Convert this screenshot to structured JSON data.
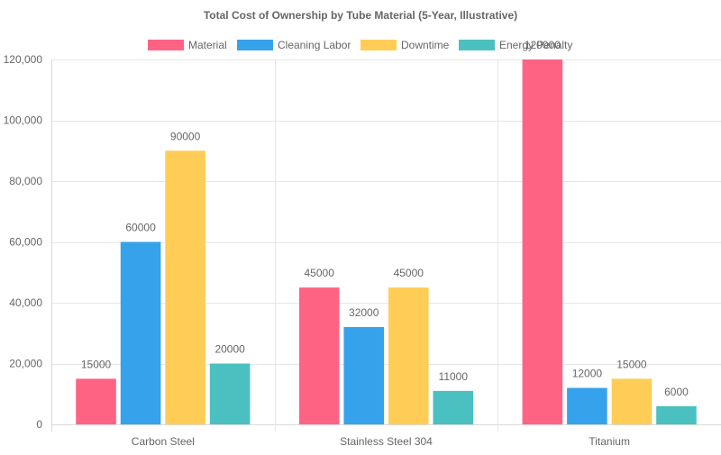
{
  "chart_data": {
    "type": "bar",
    "title": "Total Cost of Ownership by Tube Material (5-Year, Illustrative)",
    "categories": [
      "Carbon Steel",
      "Stainless Steel 304",
      "Titanium"
    ],
    "series": [
      {
        "name": "Material",
        "color": "#ff6384",
        "values": [
          15000,
          45000,
          120000
        ]
      },
      {
        "name": "Cleaning Labor",
        "color": "#36a2eb",
        "values": [
          60000,
          32000,
          12000
        ]
      },
      {
        "name": "Downtime",
        "color": "#ffcd56",
        "values": [
          90000,
          45000,
          15000
        ]
      },
      {
        "name": "Energy Penalty",
        "color": "#4bc0c0",
        "values": [
          20000,
          11000,
          6000
        ]
      }
    ],
    "ylim": [
      0,
      120000
    ],
    "yticks": [
      0,
      20000,
      40000,
      60000,
      80000,
      100000,
      120000
    ],
    "ytick_labels": [
      "0",
      "20,000",
      "40,000",
      "60,000",
      "80,000",
      "100,000",
      "120,000"
    ],
    "grid": true,
    "legend_position": "top"
  }
}
